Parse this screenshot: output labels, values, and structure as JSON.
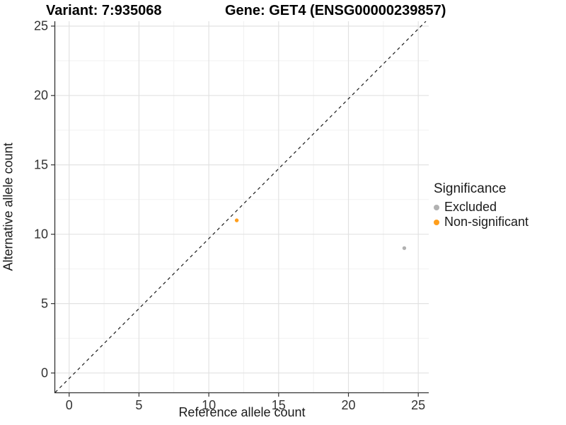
{
  "title": {
    "variant": "Variant: 7:935068",
    "gene": "Gene: GET4 (ENSG00000239857)"
  },
  "chart_data": {
    "type": "scatter",
    "xlabel": "Reference allele count",
    "ylabel": "Alternative allele count",
    "xlim": [
      -1.0,
      25.75
    ],
    "ylim": [
      -1.4,
      25.35
    ],
    "x_major_ticks": [
      0,
      5,
      10,
      15,
      20,
      25
    ],
    "y_major_ticks": [
      0,
      5,
      10,
      15,
      20,
      25
    ],
    "x_minor_ticks": [
      2.5,
      7.5,
      12.5,
      17.5,
      22.5
    ],
    "y_minor_ticks": [
      2.5,
      7.5,
      12.5,
      17.5,
      22.5
    ],
    "grid": true,
    "legend_position": "right",
    "reference_line": {
      "type": "identity",
      "style": "dashed",
      "color": "#1a1a1a"
    },
    "series": [
      {
        "name": "Excluded",
        "color": "#b1b1b1",
        "points": [
          {
            "x": 24,
            "y": 9
          }
        ]
      },
      {
        "name": "Non-significant",
        "color": "#ff9e1c",
        "points": [
          {
            "x": 12,
            "y": 11
          }
        ]
      }
    ]
  },
  "legend": {
    "title": "Significance",
    "items": [
      {
        "label": "Excluded",
        "color": "#b1b1b1"
      },
      {
        "label": "Non-significant",
        "color": "#ff9e1c"
      }
    ]
  }
}
